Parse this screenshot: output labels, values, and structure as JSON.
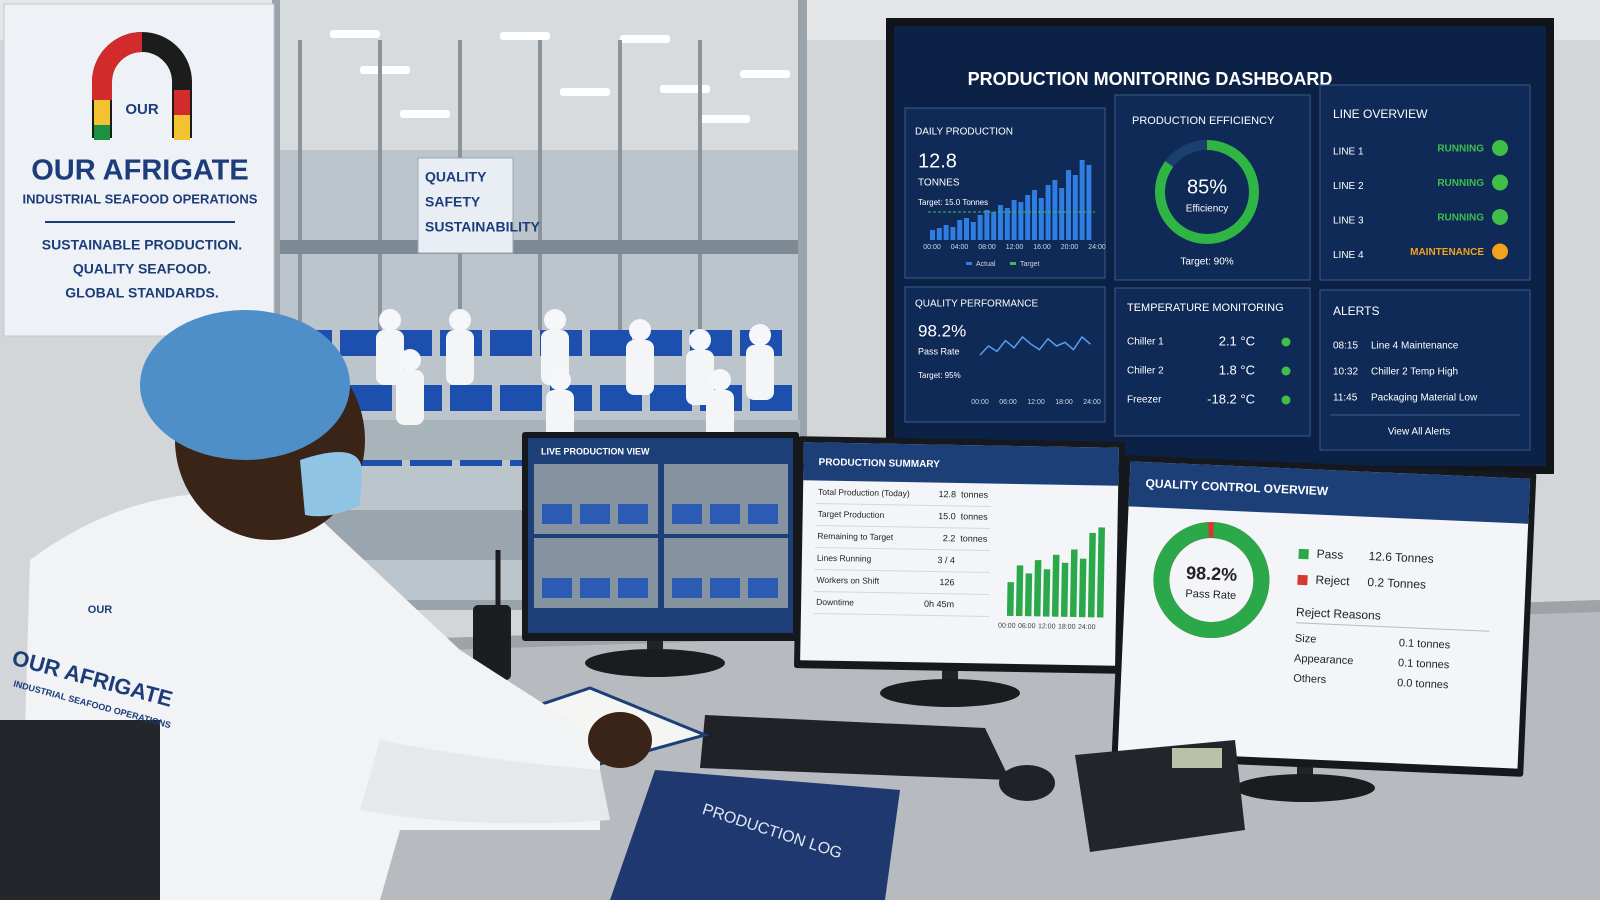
{
  "sign": {
    "logo_text": "OUR",
    "title": "OUR AFRIGATE",
    "subtitle": "INDUSTRIAL SEAFOOD OPERATIONS",
    "lines": [
      "SUSTAINABLE PRODUCTION.",
      "QUALITY SEAFOOD.",
      "GLOBAL STANDARDS."
    ]
  },
  "factory_sign": [
    "QUALITY",
    "SAFETY",
    "SUSTAINABILITY"
  ],
  "dashboard": {
    "title": "PRODUCTION MONITORING DASHBOARD",
    "daily_production": {
      "label": "DAILY PRODUCTION",
      "value": "12.8",
      "unit": "TONNES",
      "target": "Target: 15.0 Tonnes",
      "xticks": [
        "00:00",
        "04:00",
        "08:00",
        "12:00",
        "16:00",
        "20:00",
        "24:00"
      ],
      "legend": [
        "Actual",
        "Target"
      ],
      "values": [
        1,
        1.2,
        1.5,
        1.3,
        2,
        2.2,
        1.8,
        2.5,
        3,
        2.8,
        3.5,
        3.2,
        4,
        3.8,
        4.5,
        5,
        4.2,
        5.5,
        6,
        5.2,
        7,
        6.5,
        8,
        7.5
      ]
    },
    "efficiency": {
      "label": "PRODUCTION EFFICIENCY",
      "value": 85,
      "value_label": "85%",
      "caption": "Efficiency",
      "target": "Target: 90%"
    },
    "line_overview": {
      "label": "LINE OVERVIEW",
      "lines": [
        {
          "name": "LINE 1",
          "status": "RUNNING",
          "color": "#3fbf4a"
        },
        {
          "name": "LINE 2",
          "status": "RUNNING",
          "color": "#3fbf4a"
        },
        {
          "name": "LINE 3",
          "status": "RUNNING",
          "color": "#3fbf4a"
        },
        {
          "name": "LINE 4",
          "status": "MAINTENANCE",
          "color": "#f2a31b"
        }
      ]
    },
    "quality_performance": {
      "label": "QUALITY PERFORMANCE",
      "value": "98.2%",
      "caption": "Pass Rate",
      "target": "Target: 95%",
      "xticks": [
        "00:00",
        "06:00",
        "12:00",
        "18:00",
        "24:00"
      ],
      "values": [
        97.6,
        98.1,
        97.8,
        98.4,
        98,
        98.6,
        98.2,
        97.9,
        98.5,
        98.1,
        98.3,
        97.9,
        98.6,
        98.2
      ]
    },
    "temperature": {
      "label": "TEMPERATURE MONITORING",
      "rows": [
        {
          "name": "Chiller 1",
          "value": "2.1 °C"
        },
        {
          "name": "Chiller 2",
          "value": "1.8 °C"
        },
        {
          "name": "Freezer",
          "value": "-18.2 °C"
        }
      ]
    },
    "alerts": {
      "label": "ALERTS",
      "items": [
        {
          "time": "08:15",
          "text": "Line 4 Maintenance"
        },
        {
          "time": "10:32",
          "text": "Chiller 2 Temp High"
        },
        {
          "time": "11:45",
          "text": "Packaging Material Low"
        }
      ],
      "link": "View All Alerts"
    }
  },
  "live_view": {
    "title": "LIVE PRODUCTION VIEW"
  },
  "summary": {
    "title": "PRODUCTION SUMMARY",
    "rows": [
      [
        "Total Production (Today)",
        "12.8",
        "tonnes"
      ],
      [
        "Target Production",
        "15.0",
        "tonnes"
      ],
      [
        "Remaining to Target",
        "2.2",
        "tonnes"
      ],
      [
        "Lines Running",
        "3 / 4"
      ],
      [
        "Workers on Shift",
        "126"
      ],
      [
        "Downtime",
        "0h 45m"
      ]
    ],
    "xticks": [
      "00:00",
      "06:00",
      "12:00",
      "18:00",
      "24:00"
    ],
    "values": [
      3,
      4.5,
      3.8,
      5,
      4.2,
      5.5,
      4.8,
      6,
      5.2,
      7.5,
      8
    ]
  },
  "quality_control": {
    "title": "QUALITY CONTROL OVERVIEW",
    "value": 98.2,
    "value_label": "98.2%",
    "caption": "Pass Rate",
    "legend": [
      {
        "name": "Pass",
        "value": "12.6 Tonnes",
        "color": "#2aa84a"
      },
      {
        "name": "Reject",
        "value": "0.2 Tonnes",
        "color": "#d63a2f"
      }
    ],
    "reject_title": "Reject Reasons",
    "reasons": [
      {
        "name": "Size",
        "value": "0.1  tonnes"
      },
      {
        "name": "Appearance",
        "value": "0.1  tonnes"
      },
      {
        "name": "Others",
        "value": "0.0  tonnes"
      }
    ]
  },
  "book": {
    "title": "PRODUCTION LOG"
  }
}
